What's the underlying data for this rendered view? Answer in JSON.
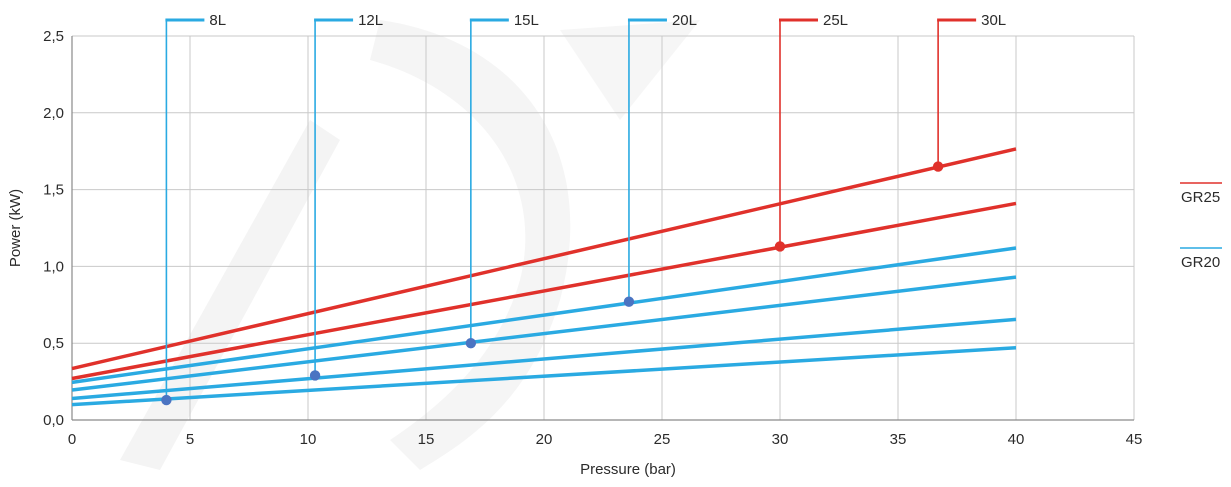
{
  "chart_data": {
    "type": "line",
    "title": "",
    "xlabel": "Pressure (bar)",
    "ylabel": "Power (kW)",
    "xlim": [
      0,
      45
    ],
    "ylim": [
      0,
      2.5
    ],
    "x_ticks": [
      0,
      5,
      10,
      15,
      20,
      25,
      30,
      35,
      40,
      45
    ],
    "y_ticks": [
      0.0,
      0.5,
      1.0,
      1.5,
      2.0,
      2.5
    ],
    "x_tick_labels": [
      "0",
      "5",
      "10",
      "15",
      "20",
      "25",
      "30",
      "35",
      "40",
      "45"
    ],
    "y_tick_labels": [
      "0,0",
      "0,5",
      "1,0",
      "1,5",
      "2,0",
      "2,5"
    ],
    "grid": true,
    "legend_position": "right",
    "legend": [
      {
        "label": "GR25",
        "color": "#e0312b"
      },
      {
        "label": "GR20",
        "color": "#2aaae2"
      }
    ],
    "series": [
      {
        "group": "GR25",
        "color": "#e0312b",
        "points": [
          [
            0,
            0.335
          ],
          [
            40,
            1.765
          ]
        ]
      },
      {
        "group": "GR25",
        "color": "#e0312b",
        "points": [
          [
            0,
            0.27
          ],
          [
            40,
            1.41
          ]
        ]
      },
      {
        "group": "GR20",
        "color": "#2aaae2",
        "points": [
          [
            0,
            0.245
          ],
          [
            40,
            1.12
          ]
        ]
      },
      {
        "group": "GR20",
        "color": "#2aaae2",
        "points": [
          [
            0,
            0.195
          ],
          [
            40,
            0.93
          ]
        ]
      },
      {
        "group": "GR20",
        "color": "#2aaae2",
        "points": [
          [
            0,
            0.14
          ],
          [
            40,
            0.655
          ]
        ]
      },
      {
        "group": "GR20",
        "color": "#2aaae2",
        "points": [
          [
            0,
            0.1
          ],
          [
            40,
            0.47
          ]
        ]
      }
    ],
    "markers": [
      {
        "label": "8L",
        "x": 4.0,
        "y": 0.13,
        "color": "#2aaae2",
        "dot_color": "#4b74c2"
      },
      {
        "label": "12L",
        "x": 10.3,
        "y": 0.29,
        "color": "#2aaae2",
        "dot_color": "#4b74c2"
      },
      {
        "label": "15L",
        "x": 16.9,
        "y": 0.5,
        "color": "#2aaae2",
        "dot_color": "#4b74c2"
      },
      {
        "label": "20L",
        "x": 23.6,
        "y": 0.77,
        "color": "#2aaae2",
        "dot_color": "#4b74c2"
      },
      {
        "label": "25L",
        "x": 30.0,
        "y": 1.13,
        "color": "#e0312b",
        "dot_color": "#e0312b"
      },
      {
        "label": "30L",
        "x": 36.7,
        "y": 1.65,
        "color": "#e0312b",
        "dot_color": "#e0312b"
      }
    ]
  }
}
